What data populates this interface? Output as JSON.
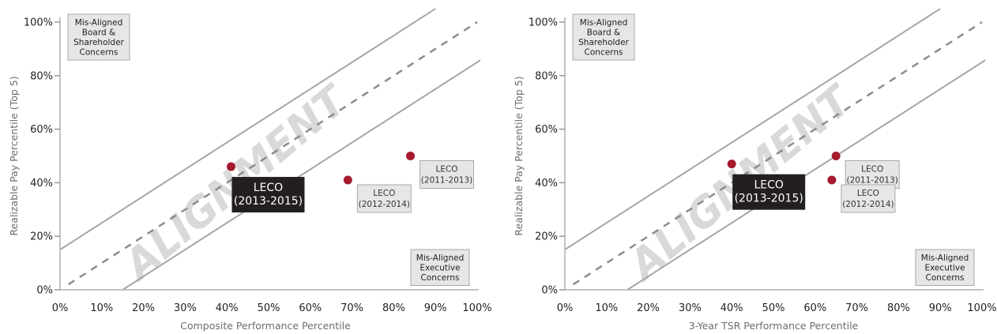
{
  "chart_data": [
    {
      "type": "scatter",
      "xlabel": "Composite Performance Percentile",
      "ylabel": "Realizable Pay Percentile (Top 5)",
      "xlim": [
        0,
        100
      ],
      "ylim": [
        0,
        100
      ],
      "x_ticks": [
        "0%",
        "10%",
        "20%",
        "30%",
        "40%",
        "50%",
        "60%",
        "70%",
        "80%",
        "90%",
        "100%"
      ],
      "y_ticks": [
        "0%",
        "20%",
        "40%",
        "60%",
        "80%",
        "100%"
      ],
      "watermark": "ALIGNMENT",
      "corner_top_left": [
        "Mis-Aligned",
        "Board &",
        "Shareholder",
        "Concerns"
      ],
      "corner_bottom_right": [
        "Mis-Aligned",
        "Executive",
        "Concerns"
      ],
      "alignment_band": {
        "center_slope": 1,
        "offset": 15
      },
      "points": [
        {
          "x": 41,
          "y": 46,
          "label": [
            "LECO",
            "(2013-2015)"
          ],
          "highlight": true
        },
        {
          "x": 69,
          "y": 41,
          "label": [
            "LECO",
            "(2012-2014)"
          ],
          "highlight": false
        },
        {
          "x": 84,
          "y": 50,
          "label": [
            "LECO",
            "(2011-2013)"
          ],
          "highlight": false
        }
      ],
      "colors": {
        "point": "#a6192e",
        "band_line": "#a6a6a6",
        "center_line": "#8c8c8c",
        "highlight_bg": "#231f20"
      }
    },
    {
      "type": "scatter",
      "xlabel": "3-Year TSR Performance Percentile",
      "ylabel": "Realizable Pay Percentile (Top 5)",
      "xlim": [
        0,
        100
      ],
      "ylim": [
        0,
        100
      ],
      "x_ticks": [
        "0%",
        "10%",
        "20%",
        "30%",
        "40%",
        "50%",
        "60%",
        "70%",
        "80%",
        "90%",
        "100%"
      ],
      "y_ticks": [
        "0%",
        "20%",
        "40%",
        "60%",
        "80%",
        "100%"
      ],
      "watermark": "ALIGNMENT",
      "corner_top_left": [
        "Mis-Aligned",
        "Board &",
        "Shareholder",
        "Concerns"
      ],
      "corner_bottom_right": [
        "Mis-Aligned",
        "Executive",
        "Concerns"
      ],
      "alignment_band": {
        "center_slope": 1,
        "offset": 15
      },
      "points": [
        {
          "x": 40,
          "y": 47,
          "label": [
            "LECO",
            "(2013-2015)"
          ],
          "highlight": true
        },
        {
          "x": 65,
          "y": 50,
          "label": [
            "LECO",
            "(2011-2013)"
          ],
          "highlight": false
        },
        {
          "x": 64,
          "y": 41,
          "label": [
            "LECO",
            "(2012-2014)"
          ],
          "highlight": false
        }
      ],
      "colors": {
        "point": "#a6192e",
        "band_line": "#a6a6a6",
        "center_line": "#8c8c8c",
        "highlight_bg": "#231f20"
      }
    }
  ]
}
